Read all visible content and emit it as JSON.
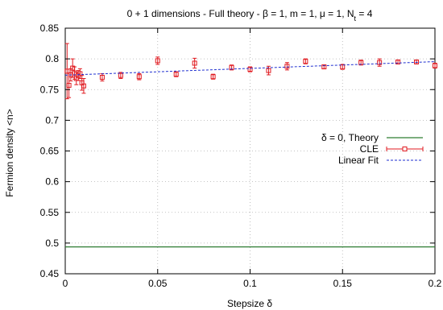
{
  "chart_data": {
    "type": "scatter",
    "title": "0 + 1 dimensions - Full theory - β = 1, m = 1, μ = 1, N",
    "title_subscript": "t",
    "title_suffix": " = 4",
    "xlabel": "Stepsize δ",
    "ylabel": "Fermion density <n>",
    "xlim": [
      0,
      0.2
    ],
    "ylim": [
      0.45,
      0.85
    ],
    "x_ticks": [
      0,
      0.05,
      0.1,
      0.15,
      0.2
    ],
    "x_tick_labels": [
      "0",
      "0.05",
      "0.1",
      "0.15",
      "0.2"
    ],
    "y_ticks": [
      0.45,
      0.5,
      0.55,
      0.6,
      0.65,
      0.7,
      0.75,
      0.8,
      0.85
    ],
    "y_tick_labels": [
      "0.45",
      "0.5",
      "0.55",
      "0.6",
      "0.65",
      "0.7",
      "0.75",
      "0.8",
      "0.85"
    ],
    "grid": true,
    "legend_position": "right",
    "series": [
      {
        "name": "δ = 0, Theory",
        "kind": "hline",
        "y": 0.4938,
        "color": "#2e7d32"
      },
      {
        "name": "CLE",
        "kind": "errorbar",
        "color": "#e0191f",
        "points": [
          {
            "x": 0.001,
            "y": 0.78,
            "err": 0.045
          },
          {
            "x": 0.002,
            "y": 0.757,
            "err": 0.02
          },
          {
            "x": 0.003,
            "y": 0.774,
            "err": 0.01
          },
          {
            "x": 0.004,
            "y": 0.785,
            "err": 0.015
          },
          {
            "x": 0.005,
            "y": 0.777,
            "err": 0.01
          },
          {
            "x": 0.006,
            "y": 0.768,
            "err": 0.01
          },
          {
            "x": 0.007,
            "y": 0.773,
            "err": 0.008
          },
          {
            "x": 0.008,
            "y": 0.776,
            "err": 0.008
          },
          {
            "x": 0.009,
            "y": 0.761,
            "err": 0.012
          },
          {
            "x": 0.01,
            "y": 0.756,
            "err": 0.012
          },
          {
            "x": 0.02,
            "y": 0.77,
            "err": 0.006
          },
          {
            "x": 0.03,
            "y": 0.773,
            "err": 0.005
          },
          {
            "x": 0.04,
            "y": 0.771,
            "err": 0.005
          },
          {
            "x": 0.05,
            "y": 0.797,
            "err": 0.006
          },
          {
            "x": 0.06,
            "y": 0.775,
            "err": 0.004
          },
          {
            "x": 0.07,
            "y": 0.793,
            "err": 0.008
          },
          {
            "x": 0.08,
            "y": 0.771,
            "err": 0.004
          },
          {
            "x": 0.09,
            "y": 0.786,
            "err": 0.004
          },
          {
            "x": 0.1,
            "y": 0.783,
            "err": 0.004
          },
          {
            "x": 0.11,
            "y": 0.781,
            "err": 0.007
          },
          {
            "x": 0.12,
            "y": 0.788,
            "err": 0.006
          },
          {
            "x": 0.13,
            "y": 0.796,
            "err": 0.004
          },
          {
            "x": 0.14,
            "y": 0.787,
            "err": 0.003
          },
          {
            "x": 0.15,
            "y": 0.787,
            "err": 0.004
          },
          {
            "x": 0.16,
            "y": 0.794,
            "err": 0.004
          },
          {
            "x": 0.17,
            "y": 0.794,
            "err": 0.006
          },
          {
            "x": 0.18,
            "y": 0.795,
            "err": 0.003
          },
          {
            "x": 0.19,
            "y": 0.795,
            "err": 0.003
          },
          {
            "x": 0.2,
            "y": 0.789,
            "err": 0.004
          }
        ]
      },
      {
        "name": "Linear Fit",
        "kind": "line",
        "dashed": true,
        "color": "#1f2fd0",
        "x": [
          0,
          0.2
        ],
        "y": [
          0.7735,
          0.7955
        ]
      }
    ]
  }
}
